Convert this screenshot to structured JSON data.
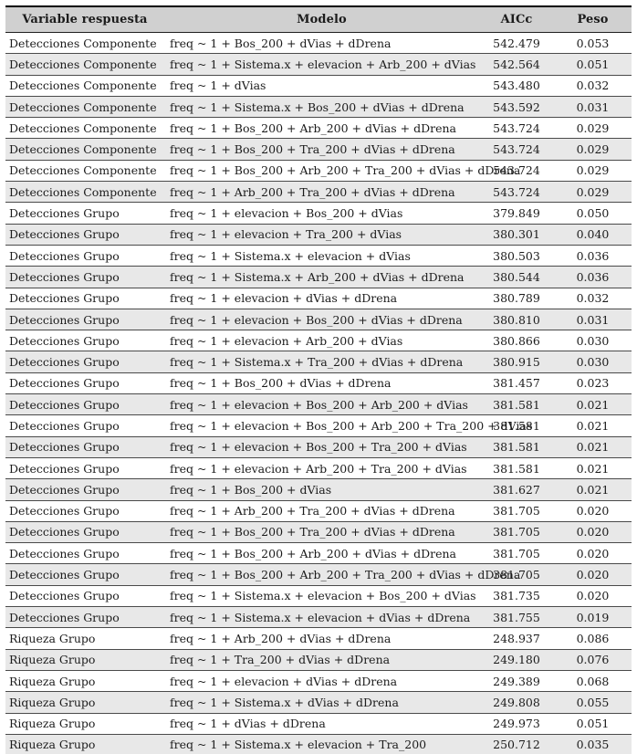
{
  "table": {
    "columns": [
      {
        "key": "variable",
        "label": "Variable respuesta"
      },
      {
        "key": "modelo",
        "label": "Modelo"
      },
      {
        "key": "aicc",
        "label": "AICc"
      },
      {
        "key": "peso",
        "label": "Peso"
      }
    ],
    "rows": [
      {
        "variable": "Detecciones Componente",
        "modelo": "freq ~ 1 + Bos_200 + dVias + dDrena",
        "aicc": "542.479",
        "peso": "0.053"
      },
      {
        "variable": "Detecciones Componente",
        "modelo": "freq ~ 1 + Sistema.x + elevacion + Arb_200 + dVias",
        "aicc": "542.564",
        "peso": "0.051"
      },
      {
        "variable": "Detecciones Componente",
        "modelo": "freq ~ 1 + dVias",
        "aicc": "543.480",
        "peso": "0.032"
      },
      {
        "variable": "Detecciones Componente",
        "modelo": "freq ~ 1 + Sistema.x + Bos_200 + dVias + dDrena",
        "aicc": "543.592",
        "peso": "0.031"
      },
      {
        "variable": "Detecciones Componente",
        "modelo": "freq ~ 1 + Bos_200 + Arb_200 + dVias + dDrena",
        "aicc": "543.724",
        "peso": "0.029"
      },
      {
        "variable": "Detecciones Componente",
        "modelo": "freq ~ 1 + Bos_200 + Tra_200 + dVias + dDrena",
        "aicc": "543.724",
        "peso": "0.029"
      },
      {
        "variable": "Detecciones Componente",
        "modelo": "freq ~ 1 + Bos_200 + Arb_200 + Tra_200 + dVias + dDrena",
        "aicc": "543.724",
        "peso": "0.029"
      },
      {
        "variable": "Detecciones Componente",
        "modelo": "freq ~ 1 + Arb_200 + Tra_200 + dVias + dDrena",
        "aicc": "543.724",
        "peso": "0.029"
      },
      {
        "variable": "Detecciones Grupo",
        "modelo": "freq ~ 1 + elevacion + Bos_200 + dVias",
        "aicc": "379.849",
        "peso": "0.050"
      },
      {
        "variable": "Detecciones Grupo",
        "modelo": "freq ~ 1 + elevacion + Tra_200 + dVias",
        "aicc": "380.301",
        "peso": "0.040"
      },
      {
        "variable": "Detecciones Grupo",
        "modelo": "freq ~ 1 + Sistema.x + elevacion + dVias",
        "aicc": "380.503",
        "peso": "0.036"
      },
      {
        "variable": "Detecciones Grupo",
        "modelo": "freq ~ 1 + Sistema.x + Arb_200 + dVias + dDrena",
        "aicc": "380.544",
        "peso": "0.036"
      },
      {
        "variable": "Detecciones Grupo",
        "modelo": "freq ~ 1 + elevacion + dVias + dDrena",
        "aicc": "380.789",
        "peso": "0.032"
      },
      {
        "variable": "Detecciones Grupo",
        "modelo": "freq ~ 1 + elevacion + Bos_200 + dVias + dDrena",
        "aicc": "380.810",
        "peso": "0.031"
      },
      {
        "variable": "Detecciones Grupo",
        "modelo": "freq ~ 1 + elevacion + Arb_200 + dVias",
        "aicc": "380.866",
        "peso": "0.030"
      },
      {
        "variable": "Detecciones Grupo",
        "modelo": "freq ~ 1 + Sistema.x + Tra_200 + dVias + dDrena",
        "aicc": "380.915",
        "peso": "0.030"
      },
      {
        "variable": "Detecciones Grupo",
        "modelo": "freq ~ 1 + Bos_200 + dVias + dDrena",
        "aicc": "381.457",
        "peso": "0.023"
      },
      {
        "variable": "Detecciones Grupo",
        "modelo": "freq ~ 1 + elevacion + Bos_200 + Arb_200 + dVias",
        "aicc": "381.581",
        "peso": "0.021"
      },
      {
        "variable": "Detecciones Grupo",
        "modelo": "freq ~ 1 + elevacion + Bos_200 + Arb_200 + Tra_200 + dVias",
        "aicc": "381.581",
        "peso": "0.021"
      },
      {
        "variable": "Detecciones Grupo",
        "modelo": "freq ~ 1 + elevacion + Bos_200 + Tra_200 + dVias",
        "aicc": "381.581",
        "peso": "0.021"
      },
      {
        "variable": "Detecciones Grupo",
        "modelo": "freq ~ 1 + elevacion + Arb_200 + Tra_200 + dVias",
        "aicc": "381.581",
        "peso": "0.021"
      },
      {
        "variable": "Detecciones Grupo",
        "modelo": "freq ~ 1 + Bos_200 + dVias",
        "aicc": "381.627",
        "peso": "0.021"
      },
      {
        "variable": "Detecciones Grupo",
        "modelo": "freq ~ 1 + Arb_200 + Tra_200 + dVias + dDrena",
        "aicc": "381.705",
        "peso": "0.020"
      },
      {
        "variable": "Detecciones Grupo",
        "modelo": "freq ~ 1 + Bos_200 + Tra_200 + dVias + dDrena",
        "aicc": "381.705",
        "peso": "0.020"
      },
      {
        "variable": "Detecciones Grupo",
        "modelo": "freq ~ 1 + Bos_200 + Arb_200 + dVias + dDrena",
        "aicc": "381.705",
        "peso": "0.020"
      },
      {
        "variable": "Detecciones Grupo",
        "modelo": "freq ~ 1 + Bos_200 + Arb_200 + Tra_200 + dVias + dDrena",
        "aicc": "381.705",
        "peso": "0.020"
      },
      {
        "variable": "Detecciones Grupo",
        "modelo": "freq ~ 1 + Sistema.x + elevacion + Bos_200 + dVias",
        "aicc": "381.735",
        "peso": "0.020"
      },
      {
        "variable": "Detecciones Grupo",
        "modelo": "freq ~ 1 + Sistema.x + elevacion + dVias + dDrena",
        "aicc": "381.755",
        "peso": "0.019"
      },
      {
        "variable": "Riqueza Grupo",
        "modelo": "freq ~ 1 + Arb_200 + dVias + dDrena",
        "aicc": "248.937",
        "peso": "0.086"
      },
      {
        "variable": "Riqueza Grupo",
        "modelo": "freq ~ 1 + Tra_200 + dVias + dDrena",
        "aicc": "249.180",
        "peso": "0.076"
      },
      {
        "variable": "Riqueza Grupo",
        "modelo": "freq ~ 1 + elevacion + dVias + dDrena",
        "aicc": "249.389",
        "peso": "0.068"
      },
      {
        "variable": "Riqueza Grupo",
        "modelo": "freq ~ 1 + Sistema.x + dVias + dDrena",
        "aicc": "249.808",
        "peso": "0.055"
      },
      {
        "variable": "Riqueza Grupo",
        "modelo": "freq ~ 1 + dVias + dDrena",
        "aicc": "249.973",
        "peso": "0.051"
      },
      {
        "variable": "Riqueza Grupo",
        "modelo": "freq ~ 1 + Sistema.x + elevacion + Tra_200",
        "aicc": "250.712",
        "peso": "0.035"
      }
    ]
  },
  "colors": {
    "header_background": "#d0d0d0",
    "alt_row_background": "#e8e8e8",
    "rule_color": "#4a4a4a",
    "frame_color": "#000000",
    "text_color": "#1b1b1b"
  }
}
